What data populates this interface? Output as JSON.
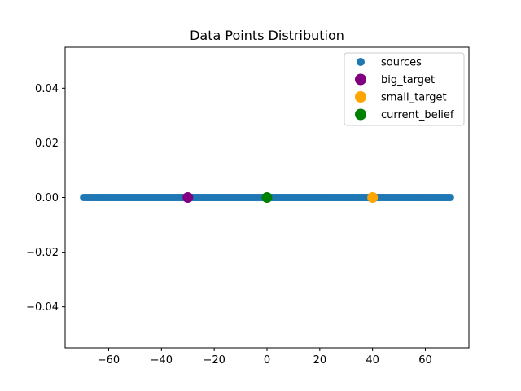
{
  "chart_data": {
    "type": "scatter",
    "title": "Data Points Distribution",
    "xlabel": "",
    "ylabel": "",
    "xlim": [
      -76.5,
      76.5
    ],
    "ylim": [
      -0.055,
      0.055
    ],
    "xticks": [
      -60,
      -40,
      -20,
      0,
      20,
      40,
      60
    ],
    "xtick_labels": [
      "−60",
      "−40",
      "−20",
      "0",
      "20",
      "40",
      "60"
    ],
    "yticks": [
      -0.04,
      -0.02,
      0.0,
      0.02,
      0.04
    ],
    "ytick_labels": [
      "−0.04",
      "−0.02",
      "0.00",
      "0.02",
      "0.04"
    ],
    "grid": false,
    "legend_position": "top-right",
    "series": [
      {
        "name": "sources",
        "color": "#1f77b4",
        "marker_size": "small",
        "x_range": [
          -69.5,
          69.5
        ],
        "x_step": 0.5,
        "y": 0.0
      },
      {
        "name": "big_target",
        "color": "#800080",
        "marker_size": "large",
        "x": [
          -30
        ],
        "y": [
          0.0
        ]
      },
      {
        "name": "small_target",
        "color": "#ffa500",
        "marker_size": "large",
        "x": [
          40
        ],
        "y": [
          0.0
        ]
      },
      {
        "name": "current_belief",
        "color": "#008000",
        "marker_size": "large",
        "x": [
          0
        ],
        "y": [
          0.0
        ]
      }
    ]
  }
}
